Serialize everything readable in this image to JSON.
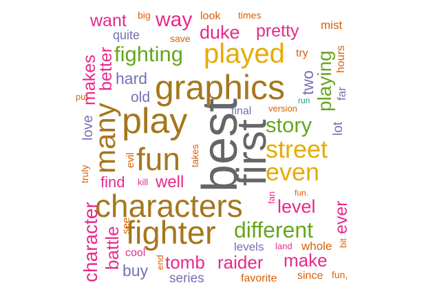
{
  "palette": {
    "brown": "#a6761d",
    "gold": "#e6ab02",
    "magenta": "#e7298a",
    "green": "#66a61e",
    "purple": "#7570b3",
    "orange": "#d95f02",
    "gray": "#666666",
    "teal": "#1b9e77"
  },
  "words": {
    "best": "best",
    "first": "first",
    "graphics": "graphics",
    "play": "play",
    "characters": "characters",
    "fighter": "fighter",
    "fun": "fun",
    "played": "played",
    "street": "street",
    "even": "even",
    "many": "many",
    "different": "different",
    "fighting": "fighting",
    "story": "story",
    "character": "character",
    "playing": "playing",
    "duke": "duke",
    "pretty": "pretty",
    "way": "way",
    "want": "want",
    "makes": "makes",
    "better": "better",
    "level": "level",
    "battle": "battle",
    "tomb": "tomb",
    "raider": "raider",
    "make": "make",
    "well": "well",
    "find": "find",
    "two": "two",
    "hard": "hard",
    "old": "old",
    "love": "love",
    "ever": "ever",
    "buy": "buy",
    "series": "series",
    "levels": "levels",
    "whole": "whole",
    "lot": "lot",
    "quite": "quite",
    "look": "look",
    "save": "save",
    "big": "big",
    "times": "times",
    "mist": "mist",
    "try": "try",
    "hours": "hours",
    "far": "far",
    "run": "run",
    "version": "version",
    "final": "final",
    "put": "put",
    "evil": "evil",
    "takes": "takes",
    "truly": "truly",
    "kill": "kill",
    "fan": "fan",
    "fun_dot": "fun.",
    "see": "see",
    "cool": "cool",
    "end": "end",
    "land": "land",
    "bit": "bit",
    "favorite": "favorite",
    "since": "since",
    "fun_comma": "fun,"
  }
}
